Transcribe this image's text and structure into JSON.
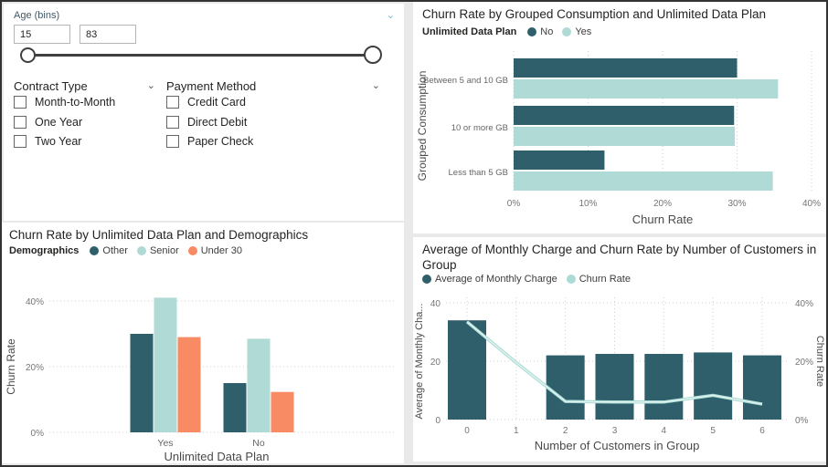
{
  "colors": {
    "dark_teal": "#2e5f6b",
    "light_teal": "#b0dad5",
    "orange": "#f98b64",
    "line_teal": "#abdbd5",
    "grid": "#cfcfcf",
    "tick_text": "#757575",
    "axis_label_text": "#4a4a4a",
    "title_text": "#252423"
  },
  "filters": {
    "age": {
      "label": "Age (bins)",
      "min_value": "15",
      "max_value": "83"
    },
    "contract": {
      "label": "Contract Type",
      "options": [
        "Month-to-Month",
        "One Year",
        "Two Year"
      ]
    },
    "payment": {
      "label": "Payment Method",
      "options": [
        "Credit Card",
        "Direct Debit",
        "Paper Check"
      ]
    }
  },
  "chart_data": [
    {
      "type": "bar",
      "orientation": "horizontal",
      "title": "Churn Rate by Grouped Consumption and Unlimited Data Plan",
      "legend_title": "Unlimited Data Plan",
      "categories": [
        "Between 5 and 10 GB",
        "10 or more GB",
        "Less than 5 GB"
      ],
      "series": [
        {
          "name": "No",
          "color": "#2e5f6b",
          "values": [
            30.0,
            29.6,
            12.2
          ]
        },
        {
          "name": "Yes",
          "color": "#b0dad5",
          "values": [
            35.5,
            29.7,
            34.8
          ]
        }
      ],
      "xlabel": "Churn Rate",
      "ylabel": "Grouped Consumption",
      "xlim": [
        0,
        40
      ],
      "xticks": [
        "0%",
        "10%",
        "20%",
        "30%",
        "40%"
      ],
      "grid": "vertical-dotted",
      "legend_position": "top"
    },
    {
      "type": "bar",
      "orientation": "vertical",
      "title": "Churn Rate by Unlimited Data Plan and Demographics",
      "legend_title": "Demographics",
      "categories": [
        "Yes",
        "No"
      ],
      "series": [
        {
          "name": "Other",
          "color": "#2e5f6b",
          "values": [
            30.0,
            15.0
          ]
        },
        {
          "name": "Senior",
          "color": "#b0dad5",
          "values": [
            41.0,
            28.5
          ]
        },
        {
          "name": "Under 30",
          "color": "#f98b64",
          "values": [
            29.0,
            12.3
          ]
        }
      ],
      "xlabel": "Unlimited Data Plan",
      "ylabel": "Churn Rate",
      "ylim": [
        0,
        40
      ],
      "yticks": [
        "0%",
        "20%",
        "40%"
      ],
      "grid": "horizontal-dotted",
      "legend_position": "top"
    },
    {
      "type": "combo",
      "title": "Average of Monthly Charge and Churn Rate by Number of Customers in Group",
      "categories": [
        "0",
        "1",
        "2",
        "3",
        "4",
        "5",
        "6"
      ],
      "bar_series": {
        "name": "Average of Monthly Charge",
        "color": "#2e5f6b",
        "values": [
          34,
          null,
          22,
          22.5,
          22.5,
          23,
          22
        ]
      },
      "line_series": {
        "name": "Churn Rate",
        "color": "#abdbd5",
        "values": [
          33.5,
          19.5,
          6.2,
          6.0,
          6.0,
          8.3,
          5.3
        ]
      },
      "xlabel": "Number of Customers in Group",
      "ylabel_left": "Average of Monthly Cha...",
      "ylabel_right": "Churn Rate",
      "ylim_left": [
        0,
        40
      ],
      "ylim_right": [
        0,
        40
      ],
      "yticks_left": [
        "0",
        "20",
        "40"
      ],
      "yticks_right": [
        "0%",
        "20%",
        "40%"
      ],
      "grid": "both-dotted",
      "legend_position": "top"
    }
  ]
}
